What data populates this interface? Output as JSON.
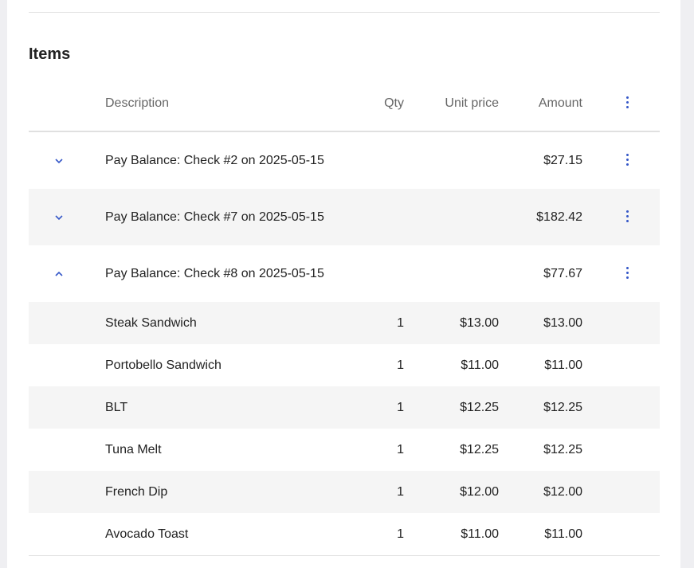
{
  "section_title": "Items",
  "columns": {
    "description": "Description",
    "qty": "Qty",
    "unit_price": "Unit price",
    "amount": "Amount"
  },
  "accent_color": "#3557c8",
  "groups": [
    {
      "description": "Pay Balance: Check #2 on 2025-05-15",
      "amount": "$27.15",
      "expanded": false
    },
    {
      "description": "Pay Balance: Check #7 on 2025-05-15",
      "amount": "$182.42",
      "expanded": false
    },
    {
      "description": "Pay Balance: Check #8 on 2025-05-15",
      "amount": "$77.67",
      "expanded": true
    }
  ],
  "items": [
    {
      "description": "Steak Sandwich",
      "qty": "1",
      "unit_price": "$13.00",
      "amount": "$13.00"
    },
    {
      "description": "Portobello Sandwich",
      "qty": "1",
      "unit_price": "$11.00",
      "amount": "$11.00"
    },
    {
      "description": "BLT",
      "qty": "1",
      "unit_price": "$12.25",
      "amount": "$12.25"
    },
    {
      "description": "Tuna Melt",
      "qty": "1",
      "unit_price": "$12.25",
      "amount": "$12.25"
    },
    {
      "description": "French Dip",
      "qty": "1",
      "unit_price": "$12.00",
      "amount": "$12.00"
    },
    {
      "description": "Avocado Toast",
      "qty": "1",
      "unit_price": "$11.00",
      "amount": "$11.00"
    }
  ]
}
